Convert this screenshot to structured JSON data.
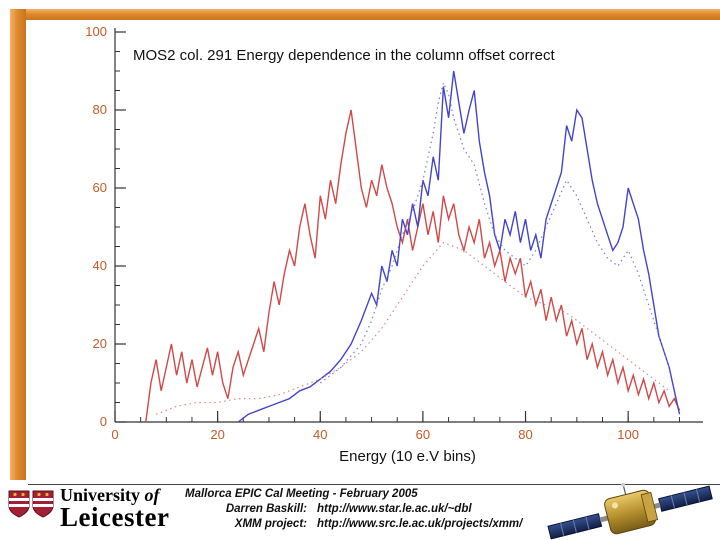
{
  "chart_data": {
    "type": "line",
    "title": "MOS2 col. 291 Energy dependence in the column offset correct",
    "xlabel": "Energy (10 e.V bins)",
    "ylabel": "",
    "xlim": [
      0,
      114
    ],
    "ylim": [
      0,
      100
    ],
    "xticks": [
      0,
      20,
      40,
      60,
      80,
      100
    ],
    "yticks": [
      0,
      20,
      40,
      60,
      80,
      100
    ],
    "minor_tick_step": 5,
    "grid": false,
    "legend": "none",
    "axis_color": "#333333",
    "tick_label_color": "#c85a28",
    "series": [
      {
        "name": "red-solid",
        "color": "#d04848",
        "style": "solid",
        "points": [
          [
            6,
            0
          ],
          [
            7,
            10
          ],
          [
            8,
            16
          ],
          [
            9,
            8
          ],
          [
            10,
            14
          ],
          [
            11,
            20
          ],
          [
            12,
            12
          ],
          [
            13,
            18
          ],
          [
            14,
            10
          ],
          [
            15,
            16
          ],
          [
            16,
            9
          ],
          [
            17,
            14
          ],
          [
            18,
            19
          ],
          [
            19,
            12
          ],
          [
            20,
            18
          ],
          [
            21,
            10
          ],
          [
            22,
            6
          ],
          [
            23,
            14
          ],
          [
            24,
            18
          ],
          [
            25,
            12
          ],
          [
            26,
            16
          ],
          [
            27,
            20
          ],
          [
            28,
            24
          ],
          [
            29,
            18
          ],
          [
            30,
            28
          ],
          [
            31,
            36
          ],
          [
            32,
            30
          ],
          [
            33,
            38
          ],
          [
            34,
            44
          ],
          [
            35,
            40
          ],
          [
            36,
            50
          ],
          [
            37,
            56
          ],
          [
            38,
            48
          ],
          [
            39,
            42
          ],
          [
            40,
            58
          ],
          [
            41,
            52
          ],
          [
            42,
            62
          ],
          [
            43,
            56
          ],
          [
            44,
            66
          ],
          [
            45,
            74
          ],
          [
            46,
            80
          ],
          [
            47,
            70
          ],
          [
            48,
            60
          ],
          [
            49,
            55
          ],
          [
            50,
            62
          ],
          [
            51,
            58
          ],
          [
            52,
            66
          ],
          [
            53,
            60
          ],
          [
            54,
            56
          ],
          [
            55,
            50
          ],
          [
            56,
            46
          ],
          [
            57,
            52
          ],
          [
            58,
            44
          ],
          [
            59,
            50
          ],
          [
            60,
            56
          ],
          [
            61,
            48
          ],
          [
            62,
            54
          ],
          [
            63,
            46
          ],
          [
            64,
            58
          ],
          [
            65,
            52
          ],
          [
            66,
            56
          ],
          [
            67,
            48
          ],
          [
            68,
            44
          ],
          [
            69,
            50
          ],
          [
            70,
            46
          ],
          [
            71,
            52
          ],
          [
            72,
            42
          ],
          [
            73,
            46
          ],
          [
            74,
            40
          ],
          [
            75,
            44
          ],
          [
            76,
            36
          ],
          [
            77,
            42
          ],
          [
            78,
            38
          ],
          [
            79,
            42
          ],
          [
            80,
            32
          ],
          [
            81,
            36
          ],
          [
            82,
            30
          ],
          [
            83,
            34
          ],
          [
            84,
            26
          ],
          [
            85,
            32
          ],
          [
            86,
            26
          ],
          [
            87,
            30
          ],
          [
            88,
            22
          ],
          [
            89,
            26
          ],
          [
            90,
            20
          ],
          [
            91,
            24
          ],
          [
            92,
            16
          ],
          [
            93,
            20
          ],
          [
            94,
            14
          ],
          [
            95,
            18
          ],
          [
            96,
            12
          ],
          [
            97,
            16
          ],
          [
            98,
            10
          ],
          [
            99,
            14
          ],
          [
            100,
            8
          ],
          [
            101,
            12
          ],
          [
            102,
            7
          ],
          [
            103,
            11
          ],
          [
            104,
            6
          ],
          [
            105,
            10
          ],
          [
            106,
            5
          ],
          [
            107,
            8
          ],
          [
            108,
            4
          ],
          [
            109,
            6
          ],
          [
            110,
            3
          ]
        ]
      },
      {
        "name": "blue-solid",
        "color": "#4444c8",
        "style": "solid",
        "points": [
          [
            24,
            0
          ],
          [
            26,
            2
          ],
          [
            28,
            3
          ],
          [
            30,
            4
          ],
          [
            32,
            5
          ],
          [
            34,
            6
          ],
          [
            36,
            8
          ],
          [
            38,
            9
          ],
          [
            40,
            11
          ],
          [
            42,
            13
          ],
          [
            44,
            16
          ],
          [
            46,
            20
          ],
          [
            48,
            26
          ],
          [
            50,
            33
          ],
          [
            51,
            30
          ],
          [
            52,
            40
          ],
          [
            53,
            36
          ],
          [
            54,
            44
          ],
          [
            55,
            40
          ],
          [
            56,
            52
          ],
          [
            57,
            48
          ],
          [
            58,
            56
          ],
          [
            59,
            50
          ],
          [
            60,
            62
          ],
          [
            61,
            58
          ],
          [
            62,
            68
          ],
          [
            63,
            62
          ],
          [
            64,
            86
          ],
          [
            65,
            78
          ],
          [
            66,
            90
          ],
          [
            67,
            82
          ],
          [
            68,
            74
          ],
          [
            69,
            80
          ],
          [
            70,
            85
          ],
          [
            71,
            72
          ],
          [
            72,
            64
          ],
          [
            73,
            58
          ],
          [
            74,
            48
          ],
          [
            75,
            44
          ],
          [
            76,
            52
          ],
          [
            77,
            48
          ],
          [
            78,
            54
          ],
          [
            79,
            46
          ],
          [
            80,
            52
          ],
          [
            81,
            44
          ],
          [
            82,
            48
          ],
          [
            83,
            42
          ],
          [
            84,
            52
          ],
          [
            85,
            56
          ],
          [
            86,
            60
          ],
          [
            87,
            64
          ],
          [
            88,
            76
          ],
          [
            89,
            72
          ],
          [
            90,
            80
          ],
          [
            91,
            78
          ],
          [
            92,
            70
          ],
          [
            93,
            62
          ],
          [
            94,
            56
          ],
          [
            95,
            52
          ],
          [
            96,
            48
          ],
          [
            97,
            44
          ],
          [
            98,
            46
          ],
          [
            99,
            50
          ],
          [
            100,
            60
          ],
          [
            101,
            56
          ],
          [
            102,
            52
          ],
          [
            103,
            44
          ],
          [
            104,
            38
          ],
          [
            105,
            30
          ],
          [
            106,
            22
          ],
          [
            107,
            18
          ],
          [
            108,
            14
          ],
          [
            109,
            8
          ],
          [
            110,
            2
          ]
        ]
      },
      {
        "name": "red-dotted",
        "color": "#d88a8a",
        "style": "dotted",
        "points": [
          [
            8,
            2
          ],
          [
            12,
            4
          ],
          [
            16,
            5
          ],
          [
            20,
            5
          ],
          [
            24,
            6
          ],
          [
            28,
            6
          ],
          [
            32,
            7
          ],
          [
            36,
            9
          ],
          [
            40,
            11
          ],
          [
            44,
            14
          ],
          [
            48,
            18
          ],
          [
            52,
            24
          ],
          [
            56,
            32
          ],
          [
            60,
            40
          ],
          [
            64,
            46
          ],
          [
            68,
            44
          ],
          [
            72,
            40
          ],
          [
            76,
            36
          ],
          [
            80,
            32
          ],
          [
            84,
            30
          ],
          [
            88,
            28
          ],
          [
            92,
            24
          ],
          [
            96,
            20
          ],
          [
            100,
            16
          ],
          [
            104,
            12
          ],
          [
            108,
            8
          ]
        ]
      },
      {
        "name": "blue-dotted",
        "color": "#7a7ad0",
        "style": "dotted",
        "points": [
          [
            40,
            10
          ],
          [
            44,
            14
          ],
          [
            48,
            20
          ],
          [
            50,
            26
          ],
          [
            52,
            34
          ],
          [
            54,
            40
          ],
          [
            56,
            48
          ],
          [
            58,
            54
          ],
          [
            60,
            62
          ],
          [
            62,
            74
          ],
          [
            63,
            82
          ],
          [
            64,
            87
          ],
          [
            65,
            84
          ],
          [
            66,
            78
          ],
          [
            68,
            70
          ],
          [
            70,
            66
          ],
          [
            72,
            56
          ],
          [
            74,
            48
          ],
          [
            76,
            44
          ],
          [
            78,
            42
          ],
          [
            80,
            40
          ],
          [
            82,
            44
          ],
          [
            84,
            50
          ],
          [
            86,
            56
          ],
          [
            88,
            62
          ],
          [
            90,
            58
          ],
          [
            92,
            52
          ],
          [
            94,
            46
          ],
          [
            96,
            42
          ],
          [
            98,
            40
          ],
          [
            100,
            44
          ],
          [
            102,
            38
          ],
          [
            104,
            30
          ],
          [
            106,
            22
          ],
          [
            108,
            14
          ]
        ]
      }
    ]
  },
  "footer": {
    "university_line1_a": "University",
    "university_line1_b": " of",
    "university_line2": "Leicester",
    "credits_heading": "Mallorca EPIC Cal Meeting - February 2005",
    "credits": [
      {
        "label": "Darren Baskill:",
        "value": "http://www.star.le.ac.uk/~dbl"
      },
      {
        "label": "XMM project:",
        "value": "http://www.src.le.ac.uk/projects/xmm/"
      }
    ]
  },
  "theme": {
    "border_orange_light": "#f3b269",
    "border_orange_dark": "#c9731d",
    "crest_red": "#a31f34"
  }
}
